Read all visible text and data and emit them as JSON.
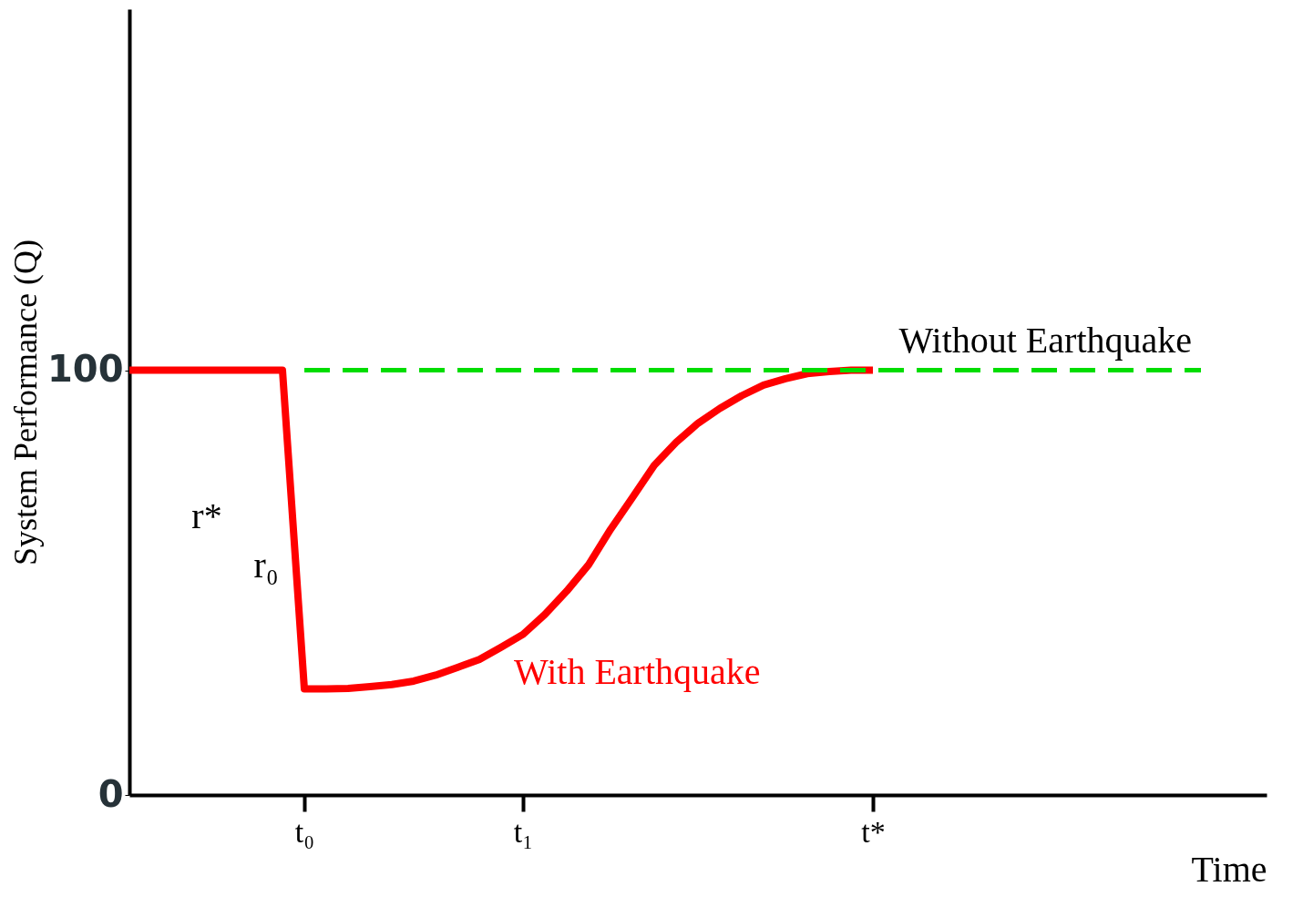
{
  "chart_data": {
    "type": "line",
    "xlabel": "Time",
    "ylabel": "System Performance (Q)",
    "categories": [
      null,
      null,
      null,
      null,
      null,
      null,
      null,
      null,
      "t₀",
      null,
      null,
      null,
      null,
      null,
      null,
      null,
      null,
      null,
      "t₁",
      null,
      null,
      null,
      null,
      null,
      null,
      null,
      null,
      null,
      null,
      null,
      null,
      null,
      null,
      null,
      "t*",
      null,
      null,
      null,
      null,
      null,
      null,
      null,
      null,
      null,
      null,
      null,
      null,
      null,
      null,
      null,
      null,
      null,
      null
    ],
    "ylim": [
      0,
      185
    ],
    "yticks": [
      0,
      100
    ],
    "series": [
      {
        "name": "With Earthquake",
        "color": "#ff0000",
        "line_style": "solid",
        "values": [
          100,
          100,
          100,
          100,
          100,
          100,
          100,
          100,
          25,
          25,
          25.1,
          25.5,
          26,
          26.8,
          28.2,
          30,
          31.9,
          34.8,
          37.8,
          42.5,
          48,
          54.2,
          62.5,
          70,
          77.6,
          83,
          87.5,
          91,
          94,
          96.5,
          98,
          99.2,
          99.7,
          100,
          100,
          null,
          null,
          null,
          null,
          null,
          null,
          null,
          null,
          null,
          null,
          null,
          null,
          null,
          null,
          null,
          null,
          null,
          null
        ]
      },
      {
        "name": "Without Earthquake",
        "color": "#00dd00",
        "line_style": "dashed",
        "values": [
          null,
          null,
          null,
          null,
          null,
          null,
          null,
          null,
          100,
          100,
          100,
          100,
          100,
          100,
          100,
          100,
          100,
          100,
          100,
          100,
          100,
          100,
          100,
          100,
          100,
          100,
          100,
          100,
          100,
          100,
          100,
          100,
          100,
          100,
          100,
          100,
          100,
          100,
          100,
          100,
          100,
          100,
          100,
          100,
          100,
          100,
          100,
          100,
          100,
          100,
          null,
          null,
          null
        ]
      }
    ],
    "annotations": [
      "r*",
      "r₀"
    ],
    "grid": false,
    "legend": false
  }
}
